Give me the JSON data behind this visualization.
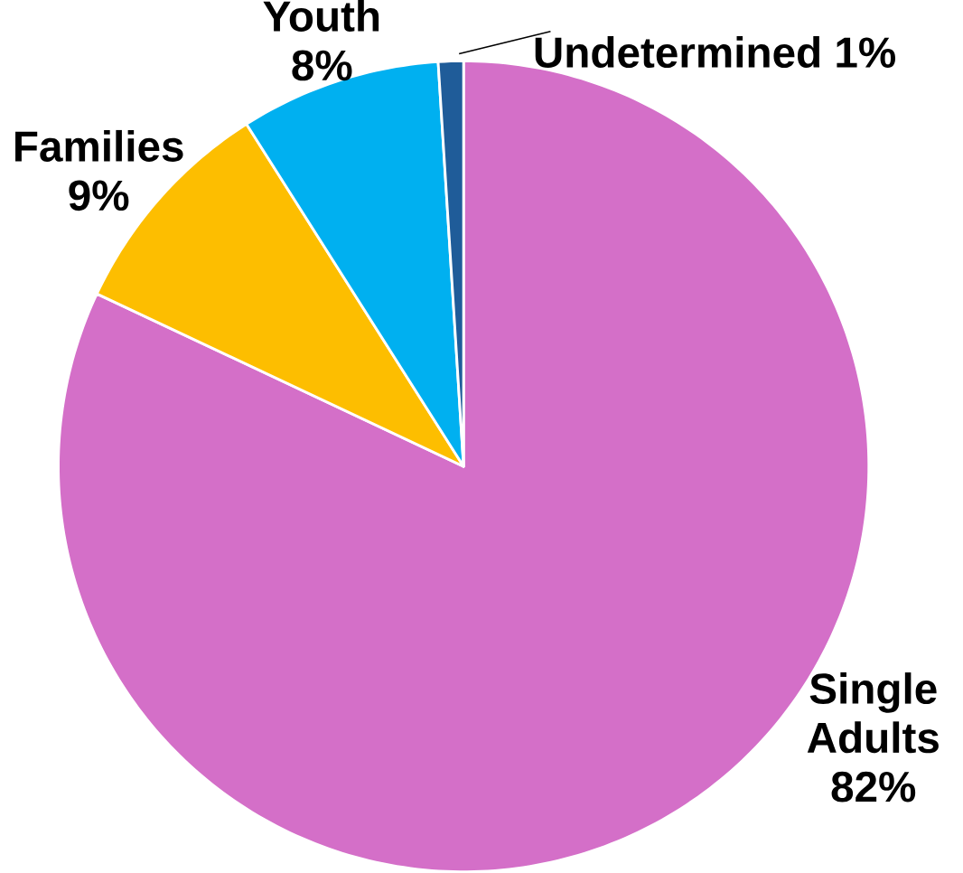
{
  "chart_data": {
    "type": "pie",
    "categories": [
      "Single Adults",
      "Families",
      "Youth",
      "Undetermined"
    ],
    "values": [
      82,
      9,
      8,
      1
    ],
    "value_labels": [
      "82%",
      "9%",
      "8%",
      "1%"
    ],
    "colors": [
      "#d46fc8",
      "#fdbe00",
      "#00b0f0",
      "#1f5c99"
    ]
  }
}
